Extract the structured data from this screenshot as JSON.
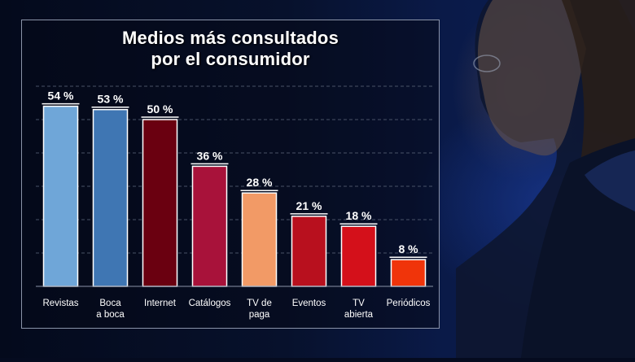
{
  "chart_data": {
    "type": "bar",
    "title_lines": [
      "Medios más consultados",
      "por el consumidor"
    ],
    "categories": [
      [
        "Revistas"
      ],
      [
        "Boca",
        "a boca"
      ],
      [
        "Internet"
      ],
      [
        "Catálogos"
      ],
      [
        "TV de",
        "paga"
      ],
      [
        "Eventos"
      ],
      [
        "TV",
        "abierta"
      ],
      [
        "Periódicos"
      ]
    ],
    "values": [
      54,
      53,
      50,
      36,
      28,
      21,
      18,
      8
    ],
    "value_labels": [
      "54 %",
      "53 %",
      "50 %",
      "36 %",
      "28 %",
      "21 %",
      "18 %",
      "8 %"
    ],
    "bar_colors": [
      "#6fa6d8",
      "#3f76b3",
      "#6a0010",
      "#a8123a",
      "#f29a66",
      "#b8101e",
      "#d4101a",
      "#f0340a"
    ],
    "ylim": [
      0,
      60
    ],
    "grid": true,
    "xlabel": "",
    "ylabel": ""
  }
}
